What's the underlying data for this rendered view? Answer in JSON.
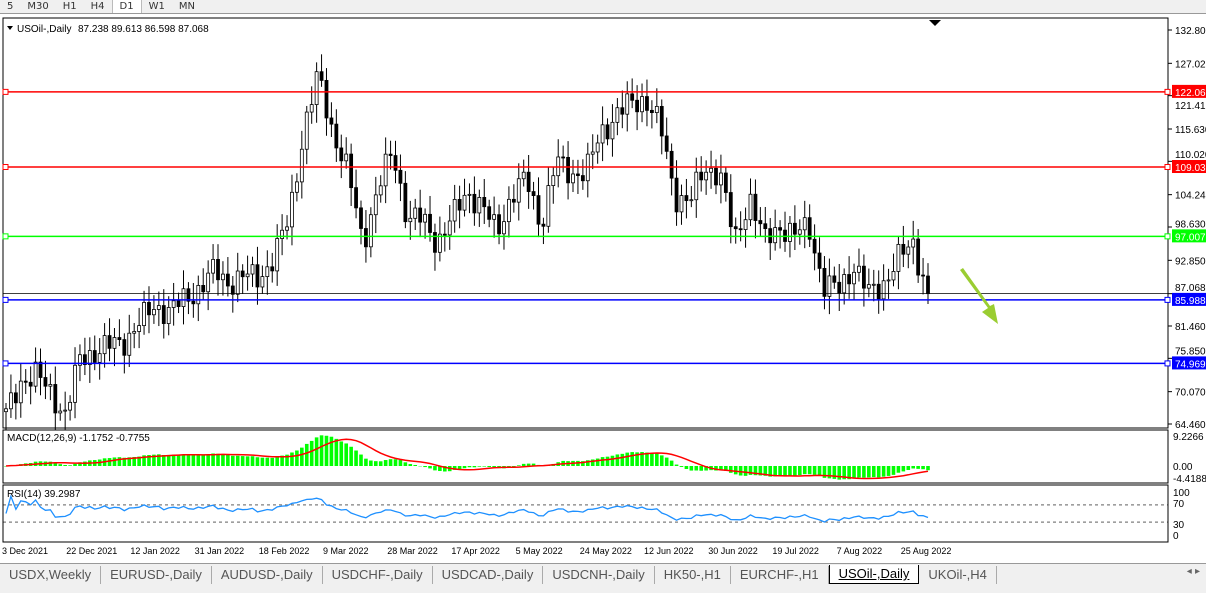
{
  "timeframes": [
    "5",
    "M30",
    "H1",
    "H4",
    "D1",
    "W1",
    "MN"
  ],
  "selected_timeframe": "D1",
  "chart": {
    "symbol": "USOil-,Daily",
    "ohlc": "87.238 89.613 86.598 87.068"
  },
  "macd": {
    "label": "MACD(12,26,9) -1.1752 -0.7755",
    "axis": [
      "9.2266",
      "0.00",
      "-4.4188"
    ]
  },
  "rsi": {
    "label": "RSI(14) 39.2987",
    "axis": [
      "100",
      "70",
      "30",
      "0"
    ]
  },
  "colors": {
    "resistance": "#ff0000",
    "support_green": "#00ff00",
    "support_blue": "#0000ff",
    "macd_hist": "#00ff00",
    "macd_signal": "#ff0000",
    "rsi_line": "#1e90ff",
    "arrow": "#9acd32"
  },
  "chart_data": {
    "type": "candlestick",
    "price_axis": [
      "132.800",
      "127.020",
      "121.410",
      "115.630",
      "110.020",
      "104.240",
      "98.630",
      "92.850",
      "87.068",
      "81.460",
      "75.850",
      "70.070",
      "64.460"
    ],
    "ylim": [
      64.46,
      132.8
    ],
    "date_axis": [
      "3 Dec 2021",
      "22 Dec 2021",
      "12 Jan 2022",
      "31 Jan 2022",
      "18 Feb 2022",
      "9 Mar 2022",
      "28 Mar 2022",
      "17 Apr 2022",
      "5 May 2022",
      "24 May 2022",
      "12 Jun 2022",
      "30 Jun 2022",
      "19 Jul 2022",
      "7 Aug 2022",
      "25 Aug 2022"
    ],
    "approx_closes": [
      66,
      72,
      73,
      70,
      66,
      76,
      77,
      78,
      79,
      82,
      85,
      84,
      86,
      88,
      91,
      89,
      90,
      90,
      93,
      100,
      115,
      125,
      115,
      108,
      96,
      105,
      112,
      100,
      100,
      96,
      100,
      105,
      102,
      98,
      104,
      107,
      99,
      110,
      108,
      108,
      115,
      118,
      120,
      121,
      116,
      104,
      103,
      109,
      108,
      96,
      104,
      96,
      99,
      97,
      99,
      88,
      88,
      92,
      87,
      89,
      93,
      96,
      87
    ],
    "current_price": "87.068",
    "horizontal_lines": [
      {
        "price": "122.066",
        "color": "#ff0000"
      },
      {
        "price": "109.036",
        "color": "#ff0000"
      },
      {
        "price": "97.007",
        "color": "#00ff00"
      },
      {
        "price": "85.988",
        "color": "#0000ff"
      },
      {
        "price": "74.969",
        "color": "#0000ff"
      }
    ],
    "annotation": "down arrow"
  },
  "tabs": [
    "USDX,Weekly",
    "EURUSD-,Daily",
    "AUDUSD-,Daily",
    "USDCHF-,Daily",
    "USDCAD-,Daily",
    "USDCNH-,Daily",
    "HK50-,H1",
    "EURCHF-,H1",
    "USOil-,Daily",
    "UKOil-,H4"
  ],
  "active_tab": "USOil-,Daily"
}
